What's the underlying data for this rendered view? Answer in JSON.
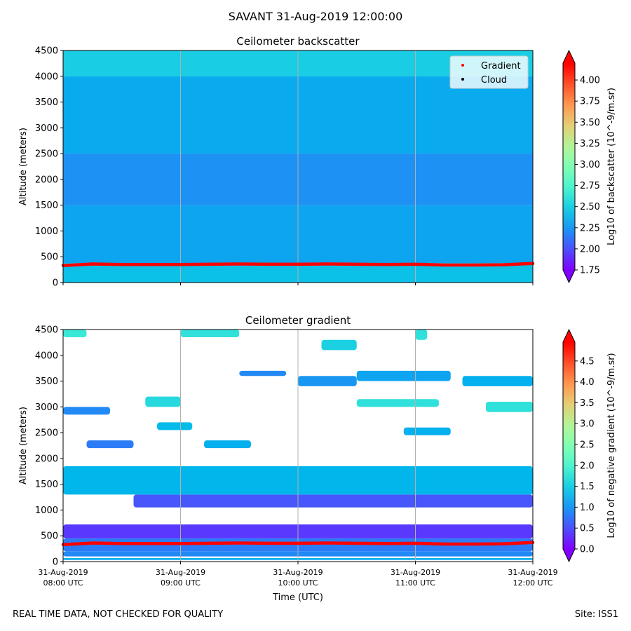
{
  "figure": {
    "suptitle": "SAVANT 31-Aug-2019 12:00:00",
    "footer_left": "REAL TIME DATA, NOT CHECKED FOR QUALITY",
    "footer_right": "Site: ISS1"
  },
  "chart_data": [
    {
      "type": "heatmap",
      "title": "Ceilometer backscatter",
      "ylabel": "Altitude (meters)",
      "xlabel": "",
      "ylim": [
        0,
        4500
      ],
      "yticks": [
        0,
        500,
        1000,
        1500,
        2000,
        2500,
        3000,
        3500,
        4000,
        4500
      ],
      "xlim_hours": [
        8,
        12
      ],
      "xgrid_hours": [
        9,
        10,
        11
      ],
      "colorbar": {
        "label": "Log10 of backscatter (10^-9/m.sr)",
        "range": [
          1.75,
          4.2
        ],
        "ticks": [
          1.75,
          2.0,
          2.25,
          2.5,
          2.75,
          3.0,
          3.25,
          3.5,
          3.75,
          4.0
        ],
        "tick_labels": [
          "1.75",
          "2.00",
          "2.25",
          "2.50",
          "2.75",
          "3.00",
          "3.25",
          "3.50",
          "3.75",
          "4.00"
        ],
        "colormap": "rainbow",
        "extend": "both"
      },
      "legend": {
        "placement": "top-right",
        "entries": [
          {
            "label": "Gradient",
            "color": "#ff0000"
          },
          {
            "label": "Cloud",
            "color": "#000000"
          }
        ]
      },
      "layers": [
        {
          "y0": 0,
          "y1": 380,
          "value": 2.42
        },
        {
          "y0": 380,
          "y1": 1500,
          "value": 2.3
        },
        {
          "y0": 1500,
          "y1": 2500,
          "value": 2.22
        },
        {
          "y0": 2500,
          "y1": 4000,
          "value": 2.32
        },
        {
          "y0": 4000,
          "y1": 4500,
          "value": 2.48
        }
      ],
      "gradient_series": {
        "name": "Gradient",
        "x_hours": [
          8.0,
          8.25,
          8.5,
          8.75,
          9.0,
          9.25,
          9.5,
          9.75,
          10.0,
          10.25,
          10.5,
          10.75,
          11.0,
          11.25,
          11.5,
          11.75,
          12.0
        ],
        "y": [
          330,
          360,
          350,
          350,
          350,
          355,
          360,
          355,
          355,
          360,
          355,
          350,
          355,
          340,
          340,
          345,
          370
        ]
      }
    },
    {
      "type": "heatmap",
      "title": "Ceilometer gradient",
      "ylabel": "Altitude (meters)",
      "xlabel": "Time (UTC)",
      "ylim": [
        0,
        4500
      ],
      "yticks": [
        0,
        500,
        1000,
        1500,
        2000,
        2500,
        3000,
        3500,
        4000,
        4500
      ],
      "xlim_hours": [
        8,
        12
      ],
      "xgrid_hours": [
        9,
        10,
        11
      ],
      "xtick_hours": [
        8,
        9,
        10,
        11,
        12
      ],
      "xtick_labels": [
        [
          "31-Aug-2019",
          "08:00 UTC"
        ],
        [
          "31-Aug-2019",
          "09:00 UTC"
        ],
        [
          "31-Aug-2019",
          "10:00 UTC"
        ],
        [
          "31-Aug-2019",
          "11:00 UTC"
        ],
        [
          "31-Aug-2019",
          "12:00 UTC"
        ]
      ],
      "colorbar": {
        "label": "Log10 of negative gradient (10^-9/m.sr)",
        "range": [
          0,
          4.95
        ],
        "ticks": [
          0.0,
          0.5,
          1.0,
          1.5,
          2.0,
          2.5,
          3.0,
          3.5,
          4.0,
          4.5
        ],
        "tick_labels": [
          "0.0",
          "0.5",
          "1.0",
          "1.5",
          "2.0",
          "2.5",
          "3.0",
          "3.5",
          "4.0",
          "4.5"
        ],
        "colormap": "rainbow",
        "extend": "both"
      },
      "bands": [
        {
          "x0": 8.0,
          "x1": 12.0,
          "y0": 30,
          "y1": 70,
          "value": 1.2
        },
        {
          "x0": 8.0,
          "x1": 12.0,
          "y0": 100,
          "y1": 200,
          "value": 0.9
        },
        {
          "x0": 8.0,
          "x1": 12.0,
          "y0": 200,
          "y1": 450,
          "value": 0.8
        },
        {
          "x0": 8.0,
          "x1": 12.0,
          "y0": 450,
          "y1": 720,
          "value": 0.35
        },
        {
          "x0": 8.6,
          "x1": 12.0,
          "y0": 1050,
          "y1": 1300,
          "value": 0.55
        },
        {
          "x0": 8.0,
          "x1": 12.0,
          "y0": 1300,
          "y1": 1850,
          "value": 1.25
        },
        {
          "x0": 8.0,
          "x1": 8.4,
          "y0": 2850,
          "y1": 3000,
          "value": 0.9
        },
        {
          "x0": 8.2,
          "x1": 8.6,
          "y0": 2200,
          "y1": 2350,
          "value": 0.8
        },
        {
          "x0": 8.7,
          "x1": 9.0,
          "y0": 3000,
          "y1": 3200,
          "value": 1.6
        },
        {
          "x0": 9.5,
          "x1": 9.9,
          "y0": 3600,
          "y1": 3700,
          "value": 0.9
        },
        {
          "x0": 10.0,
          "x1": 10.5,
          "y0": 3400,
          "y1": 3600,
          "value": 1.0
        },
        {
          "x0": 10.5,
          "x1": 11.3,
          "y0": 3500,
          "y1": 3700,
          "value": 1.1
        },
        {
          "x0": 11.4,
          "x1": 12.0,
          "y0": 3400,
          "y1": 3600,
          "value": 1.2
        },
        {
          "x0": 10.5,
          "x1": 11.2,
          "y0": 3000,
          "y1": 3150,
          "value": 1.7
        },
        {
          "x0": 8.0,
          "x1": 8.2,
          "y0": 4350,
          "y1": 4500,
          "value": 1.8
        },
        {
          "x0": 9.0,
          "x1": 9.5,
          "y0": 4350,
          "y1": 4500,
          "value": 1.7
        },
        {
          "x0": 10.2,
          "x1": 10.5,
          "y0": 4100,
          "y1": 4300,
          "value": 1.5
        },
        {
          "x0": 11.0,
          "x1": 11.1,
          "y0": 4300,
          "y1": 4500,
          "value": 1.7
        },
        {
          "x0": 8.8,
          "x1": 9.1,
          "y0": 2550,
          "y1": 2700,
          "value": 1.3
        },
        {
          "x0": 11.6,
          "x1": 12.0,
          "y0": 2900,
          "y1": 3100,
          "value": 1.7
        },
        {
          "x0": 10.9,
          "x1": 11.3,
          "y0": 2450,
          "y1": 2600,
          "value": 1.2
        },
        {
          "x0": 9.2,
          "x1": 9.6,
          "y0": 2200,
          "y1": 2350,
          "value": 1.2
        }
      ],
      "gradient_series": {
        "name": "Gradient",
        "x_hours": [
          8.0,
          8.25,
          8.5,
          8.75,
          9.0,
          9.25,
          9.5,
          9.75,
          10.0,
          10.25,
          10.5,
          10.75,
          11.0,
          11.25,
          11.5,
          11.75,
          12.0
        ],
        "y": [
          330,
          360,
          350,
          350,
          350,
          355,
          360,
          355,
          355,
          360,
          355,
          350,
          355,
          340,
          340,
          345,
          370
        ]
      }
    }
  ]
}
